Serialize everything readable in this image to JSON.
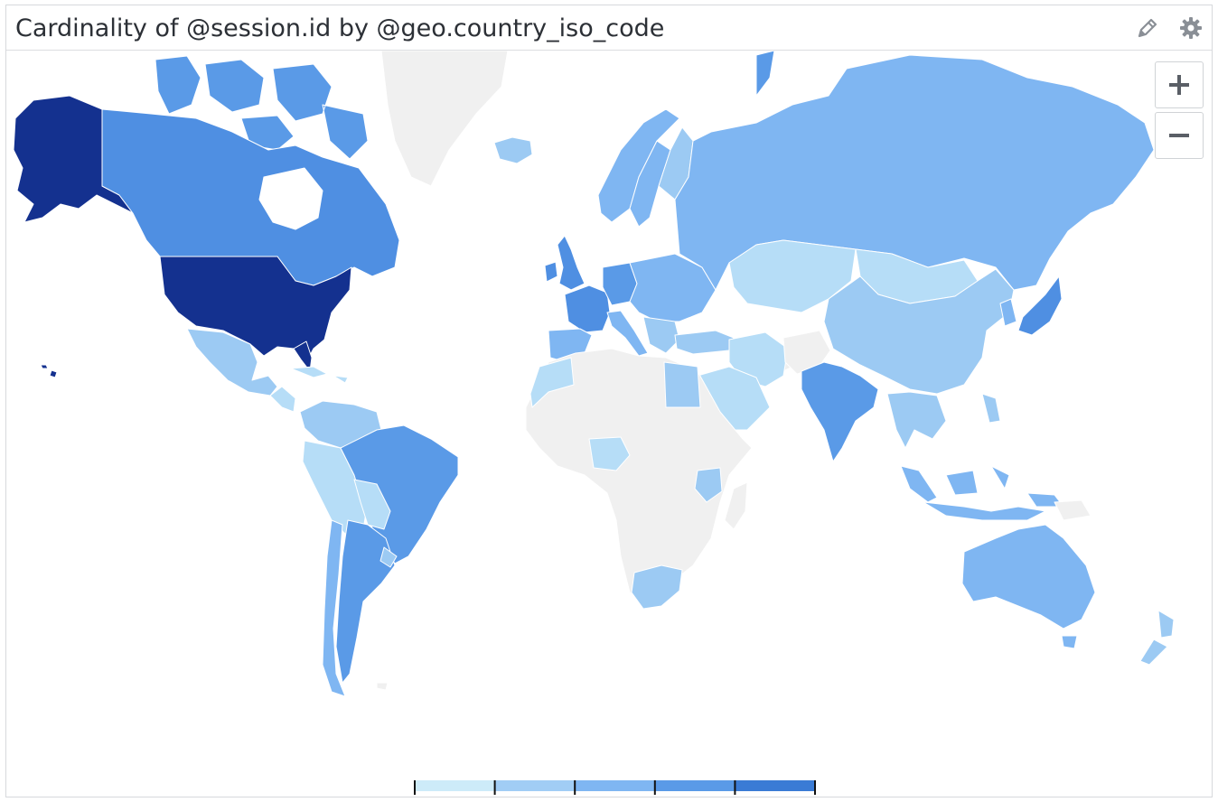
{
  "widget": {
    "title": "Cardinality of @session.id by @geo.country_iso_code",
    "icons": {
      "edit": "pencil-icon",
      "settings": "gear-icon"
    }
  },
  "zoom": {
    "in_label": "+",
    "out_label": "−"
  },
  "legend": {
    "ticks": [
      "0",
      "19",
      "305",
      "2K",
      "5K",
      "12K"
    ],
    "colors": [
      "#cdebf9",
      "#a1cdf5",
      "#7fb6f2",
      "#5a9ae7",
      "#3a7bd5",
      "#2c5fb8"
    ]
  },
  "palette": {
    "no_data": "#f0f0f0",
    "level_1": "#b6ddf7",
    "level_2": "#9ccaf3",
    "level_3": "#7fb6f2",
    "level_4": "#5a9ae7",
    "level_5": "#3a7bd5",
    "level_6": "#14318f",
    "border": "#ffffff"
  },
  "chart_data": {
    "type": "choropleth",
    "metric": "Cardinality of @session.id",
    "group_by": "@geo.country_iso_code",
    "scale_breaks": [
      0,
      19,
      305,
      2000,
      5000,
      12000
    ],
    "regions": [
      {
        "name": "United States",
        "bucket": 6
      },
      {
        "name": "Alaska (US)",
        "bucket": 6
      },
      {
        "name": "Canada",
        "bucket": 5
      },
      {
        "name": "Greenland",
        "bucket": 0
      },
      {
        "name": "Mexico",
        "bucket": 3
      },
      {
        "name": "Brazil",
        "bucket": 4
      },
      {
        "name": "Argentina",
        "bucket": 4
      },
      {
        "name": "Chile",
        "bucket": 3
      },
      {
        "name": "Colombia",
        "bucket": 3
      },
      {
        "name": "Peru",
        "bucket": 2
      },
      {
        "name": "United Kingdom",
        "bucket": 5
      },
      {
        "name": "France",
        "bucket": 5
      },
      {
        "name": "Germany",
        "bucket": 5
      },
      {
        "name": "Spain",
        "bucket": 4
      },
      {
        "name": "Russia",
        "bucket": 3
      },
      {
        "name": "China",
        "bucket": 2
      },
      {
        "name": "Mongolia",
        "bucket": 1
      },
      {
        "name": "Kazakhstan",
        "bucket": 1
      },
      {
        "name": "India",
        "bucket": 4
      },
      {
        "name": "Japan",
        "bucket": 4
      },
      {
        "name": "Indonesia",
        "bucket": 3
      },
      {
        "name": "Australia",
        "bucket": 3
      },
      {
        "name": "New Zealand",
        "bucket": 3
      },
      {
        "name": "South Africa",
        "bucket": 3
      },
      {
        "name": "Nigeria",
        "bucket": 1
      },
      {
        "name": "Egypt",
        "bucket": 2
      },
      {
        "name": "Saudi Arabia",
        "bucket": 1
      },
      {
        "name": "Iran",
        "bucket": 1
      }
    ]
  }
}
